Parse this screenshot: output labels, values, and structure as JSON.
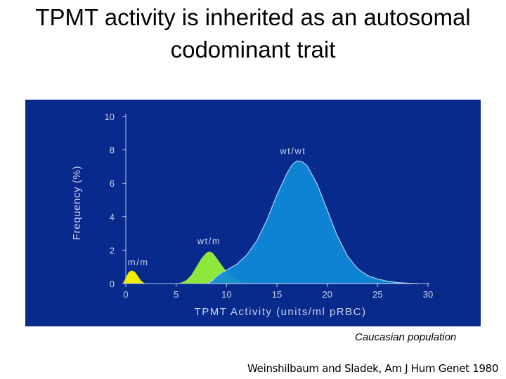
{
  "slide": {
    "title_line1": "TPMT activity is inherited as an autosomal",
    "title_line2": "codominant trait",
    "caption": "Caucasian population",
    "citation": "Weinshilbaum and Sladek, Am J Hum Genet 1980"
  },
  "colors": {
    "panel_bg": "#082a8c",
    "axis": "#b9c6e6",
    "label": "#c9d4ee",
    "mm": "#f2ee00",
    "wtm": "#8ee83c",
    "wtwt": "#0f8ad8",
    "wtwt_edge": "#a9d4ef"
  },
  "chart_data": {
    "type": "area",
    "title": "",
    "xlabel": "TPMT Activity (units/ml pRBC)",
    "ylabel": "Frequency (%)",
    "xlim": [
      0,
      30
    ],
    "ylim": [
      0,
      10
    ],
    "xticks": [
      0,
      5,
      10,
      15,
      20,
      25,
      30
    ],
    "yticks": [
      0,
      2,
      4,
      6,
      8,
      10
    ],
    "grid": false,
    "series": [
      {
        "name": "m/m",
        "color": "#f2ee00",
        "points": [
          [
            -0.3,
            0
          ],
          [
            0,
            0.35
          ],
          [
            0.3,
            0.7
          ],
          [
            0.6,
            0.78
          ],
          [
            0.9,
            0.7
          ],
          [
            1.2,
            0.45
          ],
          [
            1.5,
            0.18
          ],
          [
            1.8,
            0.04
          ],
          [
            2.1,
            0
          ]
        ]
      },
      {
        "name": "wt/m",
        "color": "#8ee83c",
        "points": [
          [
            5.0,
            0
          ],
          [
            5.5,
            0.06
          ],
          [
            6.0,
            0.2
          ],
          [
            6.5,
            0.5
          ],
          [
            7.0,
            1.0
          ],
          [
            7.5,
            1.5
          ],
          [
            8.0,
            1.85
          ],
          [
            8.3,
            1.92
          ],
          [
            8.6,
            1.85
          ],
          [
            9.0,
            1.55
          ],
          [
            9.5,
            1.12
          ],
          [
            10.0,
            0.72
          ],
          [
            10.5,
            0.42
          ],
          [
            11.0,
            0.22
          ],
          [
            11.5,
            0.1
          ],
          [
            12.0,
            0.03
          ],
          [
            12.5,
            0
          ]
        ]
      },
      {
        "name": "wt/wt",
        "color": "#0f8ad8",
        "points": [
          [
            8.0,
            0
          ],
          [
            8.5,
            0.12
          ],
          [
            9.0,
            0.42
          ],
          [
            9.5,
            0.65
          ],
          [
            10.0,
            0.8
          ],
          [
            11.0,
            1.15
          ],
          [
            12.0,
            1.7
          ],
          [
            13.0,
            2.55
          ],
          [
            14.0,
            3.8
          ],
          [
            15.0,
            5.3
          ],
          [
            16.0,
            6.6
          ],
          [
            16.5,
            7.1
          ],
          [
            17.0,
            7.35
          ],
          [
            17.5,
            7.3
          ],
          [
            18.0,
            7.05
          ],
          [
            19.0,
            5.95
          ],
          [
            20.0,
            4.4
          ],
          [
            21.0,
            2.85
          ],
          [
            22.0,
            1.65
          ],
          [
            23.0,
            0.9
          ],
          [
            24.0,
            0.48
          ],
          [
            25.0,
            0.27
          ],
          [
            26.0,
            0.14
          ],
          [
            27.0,
            0.06
          ],
          [
            28.0,
            0.02
          ],
          [
            29.0,
            0
          ]
        ]
      }
    ],
    "annotations": [
      {
        "text": "m/m",
        "x": 0.2,
        "y": 1.1
      },
      {
        "text": "wt/m",
        "x": 7.1,
        "y": 2.35
      },
      {
        "text": "wt/wt",
        "x": 15.3,
        "y": 7.75
      }
    ]
  }
}
